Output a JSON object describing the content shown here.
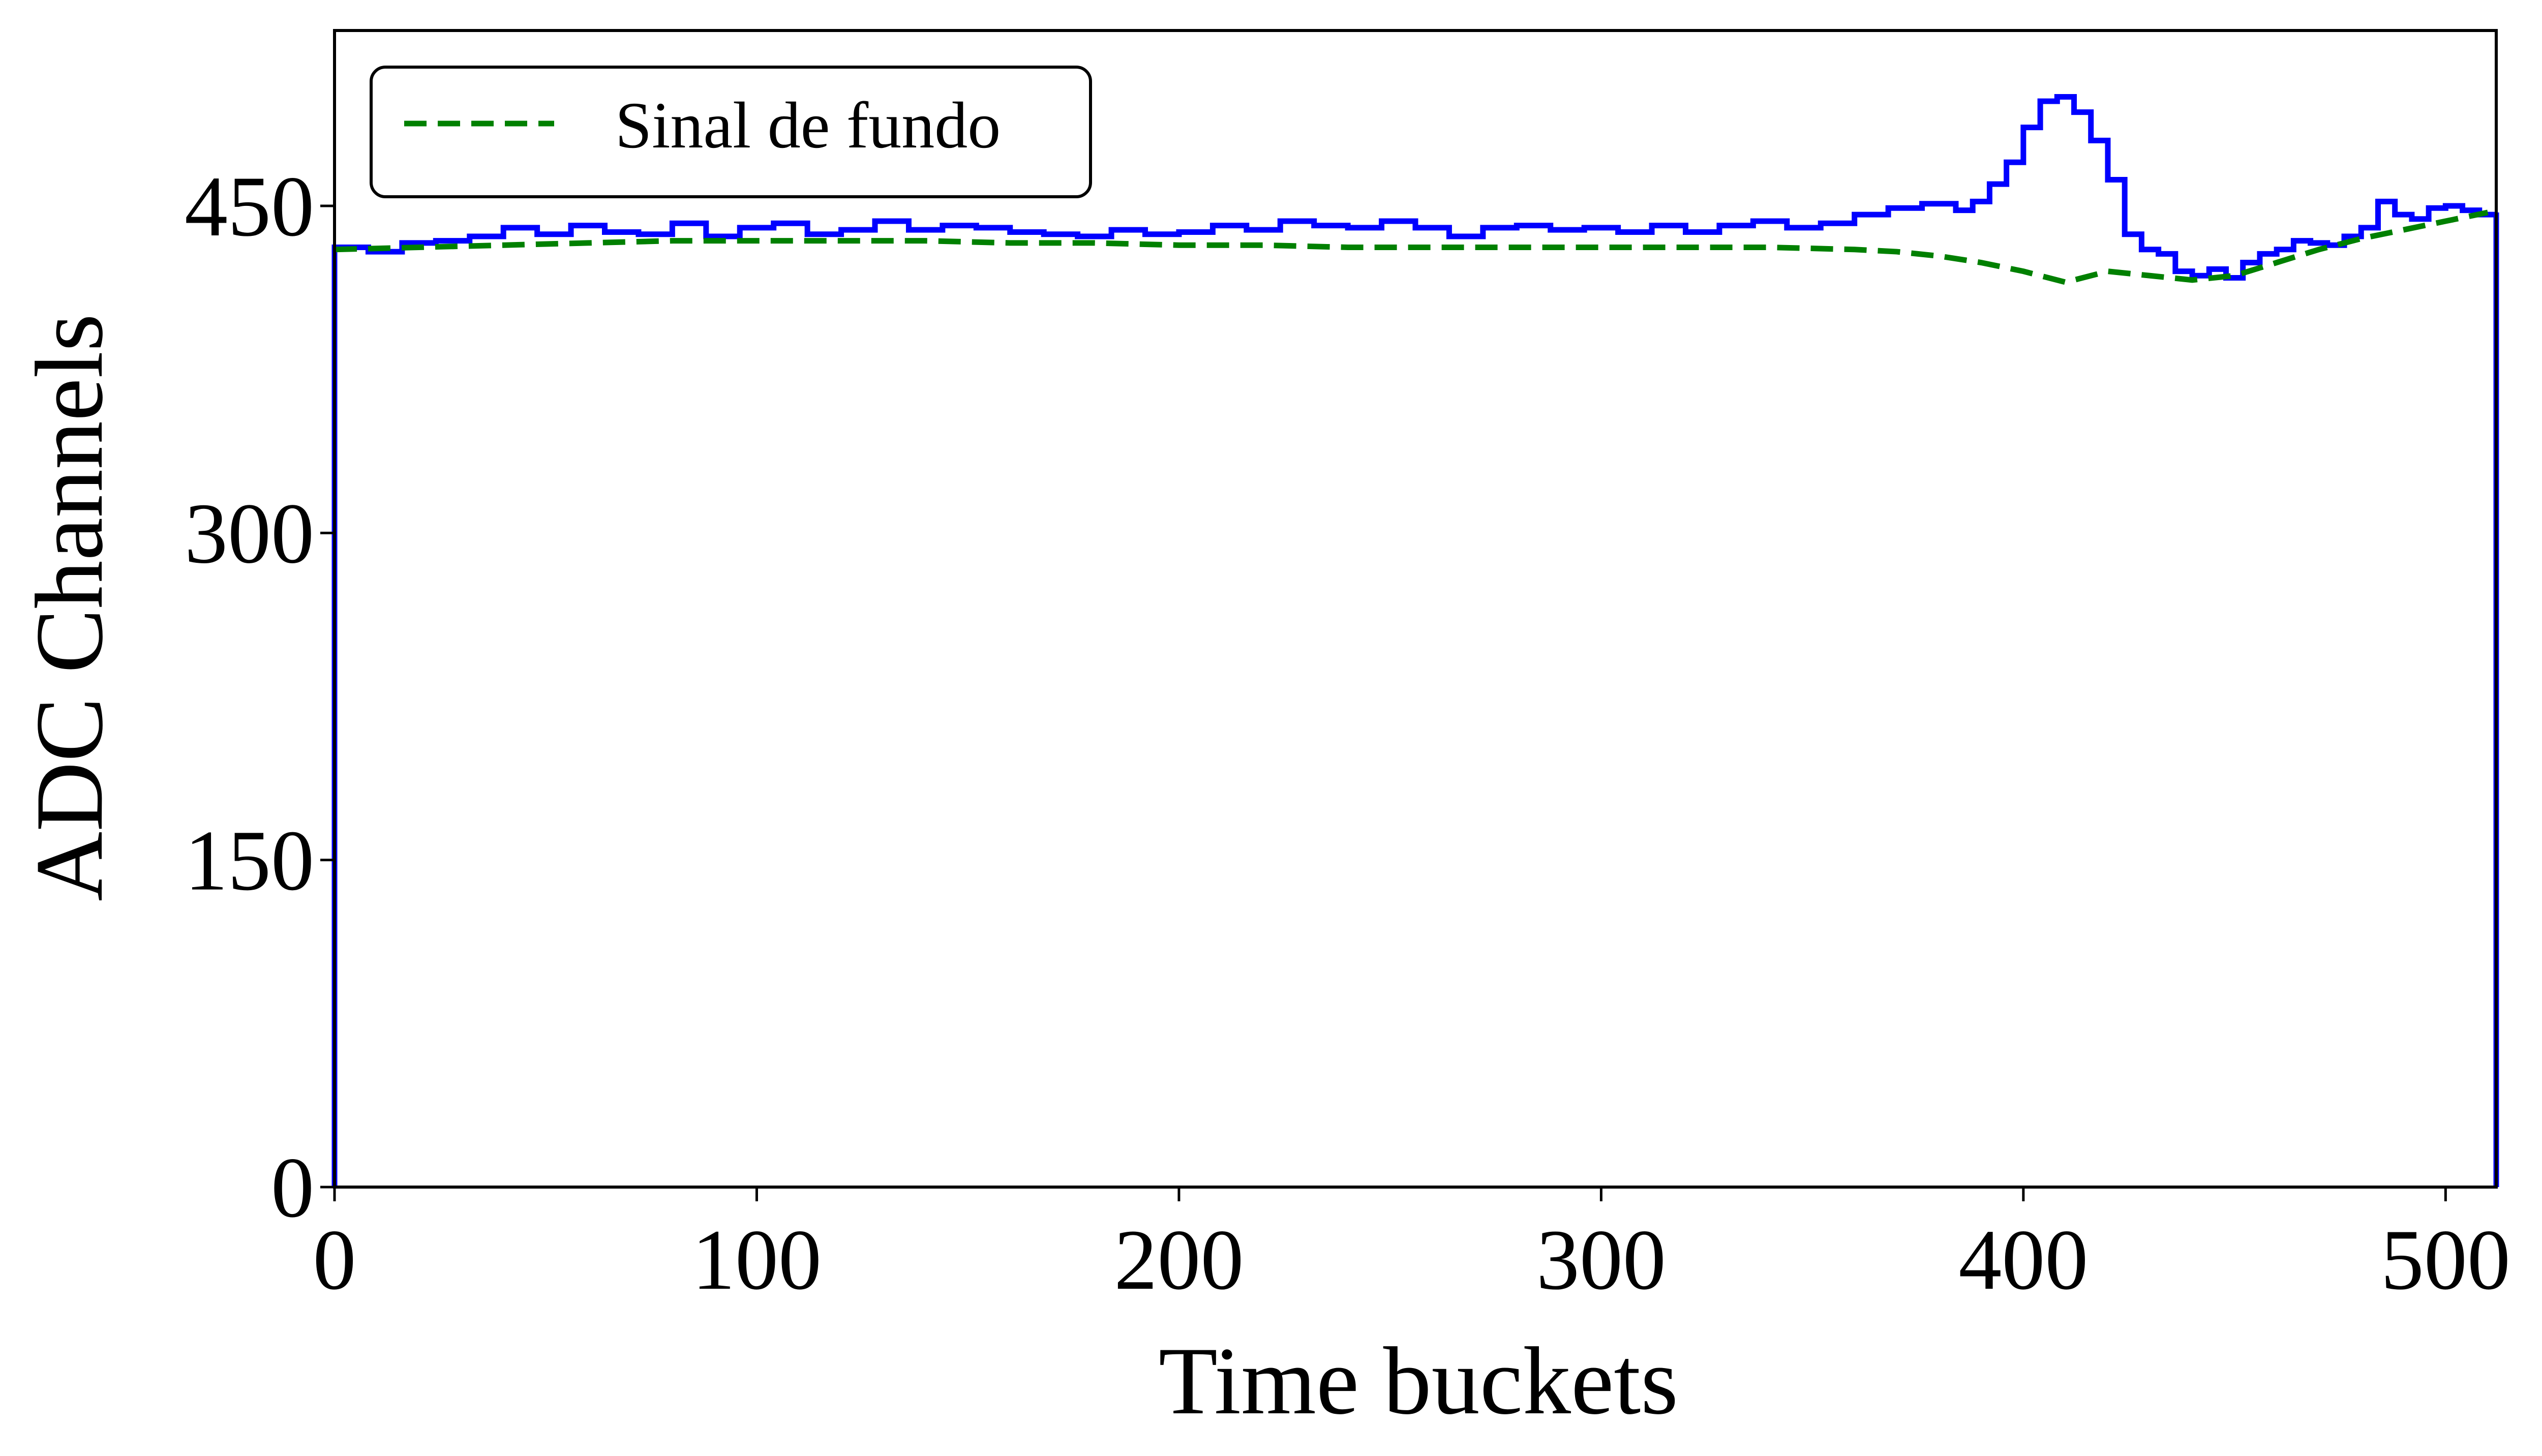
{
  "chart_data": {
    "type": "line",
    "title": "",
    "xlabel": "Time buckets",
    "ylabel": "ADC Channels",
    "xlim": [
      0,
      512
    ],
    "ylim": [
      0,
      450
    ],
    "x_ticks": [
      0,
      100,
      200,
      300,
      400,
      500
    ],
    "y_ticks": [
      0,
      150,
      300,
      450
    ],
    "grid": false,
    "legend_position": "upper-left",
    "series": [
      {
        "name": "",
        "style": "steps",
        "color": "#0000ff",
        "drop_to_zero_at_ends": true,
        "x": [
          0,
          8,
          16,
          24,
          32,
          40,
          48,
          56,
          64,
          72,
          80,
          88,
          96,
          104,
          112,
          120,
          128,
          136,
          144,
          152,
          160,
          168,
          176,
          184,
          192,
          200,
          208,
          216,
          224,
          232,
          240,
          248,
          256,
          264,
          272,
          280,
          288,
          296,
          304,
          312,
          320,
          328,
          336,
          344,
          352,
          360,
          368,
          376,
          384,
          388,
          392,
          396,
          400,
          404,
          408,
          412,
          416,
          420,
          424,
          428,
          432,
          436,
          440,
          444,
          448,
          452,
          456,
          460,
          464,
          468,
          472,
          476,
          480,
          484,
          488,
          492,
          496,
          500,
          504,
          508,
          512
        ],
        "y": [
          431,
          429,
          433,
          434,
          436,
          440,
          437,
          441,
          438,
          437,
          442,
          436,
          440,
          442,
          437,
          439,
          443,
          439,
          441,
          440,
          438,
          437,
          436,
          439,
          437,
          438,
          441,
          439,
          443,
          441,
          440,
          443,
          440,
          436,
          440,
          441,
          439,
          440,
          438,
          441,
          438,
          441,
          443,
          440,
          442,
          446,
          449,
          451,
          448,
          452,
          460,
          470,
          486,
          498,
          500,
          493,
          480,
          462,
          437,
          430,
          428,
          420,
          418,
          421,
          417,
          424,
          428,
          430,
          434,
          433,
          432,
          436,
          440,
          452,
          446,
          444,
          449,
          450,
          448,
          446,
          447
        ]
      },
      {
        "name": "Sinal de fundo",
        "style": "dashed",
        "color": "#008000",
        "x": [
          0,
          20,
          40,
          60,
          80,
          100,
          120,
          140,
          160,
          180,
          200,
          220,
          240,
          260,
          280,
          300,
          320,
          340,
          360,
          370,
          380,
          390,
          400,
          410,
          420,
          430,
          440,
          450,
          460,
          470,
          480,
          490,
          500,
          510
        ],
        "y": [
          430,
          431,
          432,
          433,
          434,
          434,
          434,
          434,
          433,
          433,
          432,
          432,
          431,
          431,
          431,
          431,
          431,
          431,
          430,
          429,
          427,
          424,
          420,
          415,
          420,
          418,
          416,
          418,
          424,
          430,
          435,
          439,
          443,
          447
        ]
      }
    ],
    "legend": {
      "entries": [
        "Sinal de fundo"
      ]
    }
  }
}
